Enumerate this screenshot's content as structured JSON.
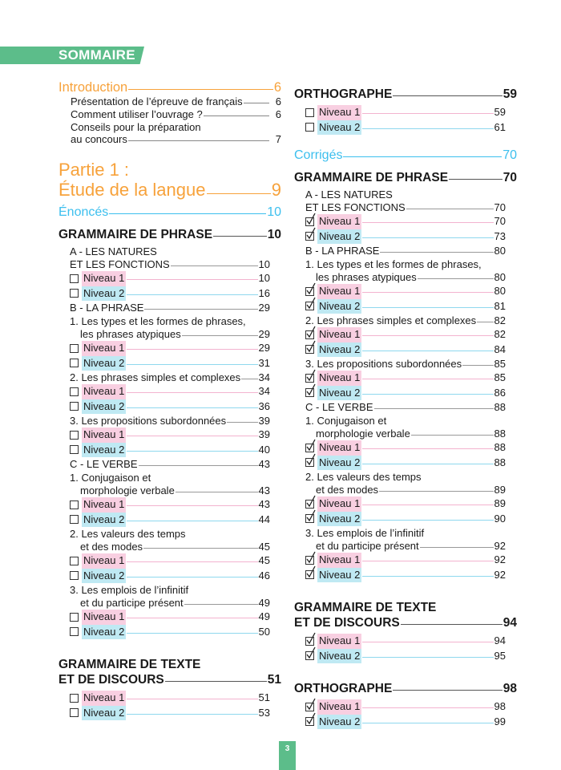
{
  "header": {
    "title": "SOMMAIRE"
  },
  "footer": {
    "page_number": "3"
  },
  "colors": {
    "accent_green": "#5cbd8a",
    "orange": "#f7a23b",
    "blue": "#3cbfee",
    "niveau1_highlight": "#f8cfe1",
    "niveau2_highlight": "#bfe9f3"
  },
  "left": [
    {
      "t": "intro",
      "lines": [
        "Introduction"
      ],
      "page": "6"
    },
    {
      "t": "sub",
      "lines": [
        "Présentation de l’épreuve de français"
      ],
      "page": "6"
    },
    {
      "t": "sub",
      "lines": [
        "Comment utiliser l’ouvrage ?"
      ],
      "page": "6"
    },
    {
      "t": "sub",
      "lines": [
        "Conseils pour la préparation",
        "au concours"
      ],
      "page": "7"
    },
    {
      "t": "part",
      "lines": [
        "Partie 1 :",
        "Étude de la langue"
      ],
      "page": "9"
    },
    {
      "t": "enonces",
      "lines": [
        "Énoncés"
      ],
      "page": "10"
    },
    {
      "t": "section",
      "lines": [
        "GRAMMAIRE DE PHRASE"
      ],
      "page": "10"
    },
    {
      "t": "item",
      "lines": [
        "A - LES NATURES",
        "ET LES FONCTIONS"
      ],
      "page": "10"
    },
    {
      "t": "n1",
      "lines": [
        "Niveau 1"
      ],
      "page": "10",
      "checked": false
    },
    {
      "t": "n2",
      "lines": [
        "Niveau 2"
      ],
      "page": "16",
      "checked": false
    },
    {
      "t": "item",
      "lines": [
        "B - LA PHRASE"
      ],
      "page": "29"
    },
    {
      "t": "item",
      "lines": [
        "1. Les types et les formes de phrases,",
        "les phrases atypiques"
      ],
      "page": "29",
      "hang": true
    },
    {
      "t": "n1",
      "lines": [
        "Niveau 1"
      ],
      "page": "29",
      "checked": false
    },
    {
      "t": "n2",
      "lines": [
        "Niveau 2"
      ],
      "page": "31",
      "checked": false
    },
    {
      "t": "item",
      "lines": [
        "2. Les phrases simples et complexes"
      ],
      "page": "34"
    },
    {
      "t": "n1",
      "lines": [
        "Niveau 1"
      ],
      "page": "34",
      "checked": false
    },
    {
      "t": "n2",
      "lines": [
        "Niveau 2"
      ],
      "page": "36",
      "checked": false
    },
    {
      "t": "item",
      "lines": [
        "3. Les propositions subordonnées"
      ],
      "page": "39"
    },
    {
      "t": "n1",
      "lines": [
        "Niveau 1"
      ],
      "page": "39",
      "checked": false
    },
    {
      "t": "n2",
      "lines": [
        "Niveau 2"
      ],
      "page": "40",
      "checked": false
    },
    {
      "t": "item",
      "lines": [
        "C - LE VERBE"
      ],
      "page": "43"
    },
    {
      "t": "item",
      "lines": [
        "1. Conjugaison et",
        "morphologie verbale"
      ],
      "page": "43",
      "hang": true
    },
    {
      "t": "n1",
      "lines": [
        "Niveau 1"
      ],
      "page": "43",
      "checked": false
    },
    {
      "t": "n2",
      "lines": [
        "Niveau 2"
      ],
      "page": "44",
      "checked": false
    },
    {
      "t": "item",
      "lines": [
        "2. Les valeurs des temps",
        "et des modes"
      ],
      "page": "45",
      "hang": true
    },
    {
      "t": "n1",
      "lines": [
        "Niveau 1"
      ],
      "page": "45",
      "checked": false
    },
    {
      "t": "n2",
      "lines": [
        "Niveau 2"
      ],
      "page": "46",
      "checked": false
    },
    {
      "t": "item",
      "lines": [
        "3. Les emplois de l’infinitif",
        "et du participe présent"
      ],
      "page": "49",
      "hang": true
    },
    {
      "t": "n1",
      "lines": [
        "Niveau 1"
      ],
      "page": "49",
      "checked": false
    },
    {
      "t": "n2",
      "lines": [
        "Niveau 2"
      ],
      "page": "50",
      "checked": false
    },
    {
      "t": "section big",
      "lines": [
        "GRAMMAIRE DE TEXTE",
        "ET DE DISCOURS"
      ],
      "page": "51"
    },
    {
      "t": "n1",
      "lines": [
        "Niveau 1"
      ],
      "page": "51",
      "checked": false
    },
    {
      "t": "n2",
      "lines": [
        "Niveau 2"
      ],
      "page": "53",
      "checked": false
    }
  ],
  "right": [
    {
      "t": "section",
      "lines": [
        "ORTHOGRAPHE"
      ],
      "page": "59"
    },
    {
      "t": "n1",
      "lines": [
        "Niveau 1"
      ],
      "page": "59",
      "checked": false
    },
    {
      "t": "n2",
      "lines": [
        "Niveau 2"
      ],
      "page": "61",
      "checked": false
    },
    {
      "t": "corriges",
      "lines": [
        "Corrigés"
      ],
      "page": "70"
    },
    {
      "t": "section",
      "lines": [
        "GRAMMAIRE DE PHRASE"
      ],
      "page": "70"
    },
    {
      "t": "item",
      "lines": [
        "A - LES NATURES",
        "ET LES FONCTIONS"
      ],
      "page": "70"
    },
    {
      "t": "n1",
      "lines": [
        "Niveau 1"
      ],
      "page": "70",
      "checked": true
    },
    {
      "t": "n2",
      "lines": [
        "Niveau 2"
      ],
      "page": "73",
      "checked": true
    },
    {
      "t": "item",
      "lines": [
        "B - LA PHRASE"
      ],
      "page": "80"
    },
    {
      "t": "item",
      "lines": [
        "1. Les types et les formes de phrases,",
        "les phrases atypiques"
      ],
      "page": "80",
      "hang": true
    },
    {
      "t": "n1",
      "lines": [
        "Niveau 1"
      ],
      "page": "80",
      "checked": true
    },
    {
      "t": "n2",
      "lines": [
        "Niveau 2"
      ],
      "page": "81",
      "checked": true
    },
    {
      "t": "item",
      "lines": [
        "2. Les phrases simples et complexes"
      ],
      "page": "82"
    },
    {
      "t": "n1",
      "lines": [
        "Niveau 1"
      ],
      "page": "82",
      "checked": true
    },
    {
      "t": "n2",
      "lines": [
        "Niveau 2"
      ],
      "page": "84",
      "checked": true
    },
    {
      "t": "item",
      "lines": [
        "3. Les propositions subordonnées"
      ],
      "page": "85"
    },
    {
      "t": "n1",
      "lines": [
        "Niveau 1"
      ],
      "page": "85",
      "checked": true
    },
    {
      "t": "n2",
      "lines": [
        "Niveau 2"
      ],
      "page": "86",
      "checked": true
    },
    {
      "t": "item",
      "lines": [
        "C - LE VERBE"
      ],
      "page": "88"
    },
    {
      "t": "item",
      "lines": [
        "1. Conjugaison et",
        "morphologie verbale"
      ],
      "page": "88",
      "hang": true
    },
    {
      "t": "n1",
      "lines": [
        "Niveau 1"
      ],
      "page": "88",
      "checked": true
    },
    {
      "t": "n2",
      "lines": [
        "Niveau 2"
      ],
      "page": "88",
      "checked": true
    },
    {
      "t": "item",
      "lines": [
        "2. Les valeurs des temps",
        "et des modes"
      ],
      "page": "89",
      "hang": true
    },
    {
      "t": "n1",
      "lines": [
        "Niveau 1"
      ],
      "page": "89",
      "checked": true
    },
    {
      "t": "n2",
      "lines": [
        "Niveau 2"
      ],
      "page": "90",
      "checked": true
    },
    {
      "t": "item",
      "lines": [
        "3. Les emplois de l’infinitif",
        "et du participe présent"
      ],
      "page": "92",
      "hang": true
    },
    {
      "t": "n1",
      "lines": [
        "Niveau 1"
      ],
      "page": "92",
      "checked": true
    },
    {
      "t": "n2",
      "lines": [
        "Niveau 2"
      ],
      "page": "92",
      "checked": true
    },
    {
      "t": "section big",
      "lines": [
        "GRAMMAIRE DE TEXTE",
        "ET DE DISCOURS"
      ],
      "page": "94"
    },
    {
      "t": "n1",
      "lines": [
        "Niveau 1"
      ],
      "page": "94",
      "checked": true
    },
    {
      "t": "n2",
      "lines": [
        "Niveau 2"
      ],
      "page": "95",
      "checked": true
    },
    {
      "t": "section big",
      "lines": [
        "ORTHOGRAPHE"
      ],
      "page": "98"
    },
    {
      "t": "n1",
      "lines": [
        "Niveau 1"
      ],
      "page": "98",
      "checked": true
    },
    {
      "t": "n2",
      "lines": [
        "Niveau 2"
      ],
      "page": "99",
      "checked": true
    }
  ]
}
